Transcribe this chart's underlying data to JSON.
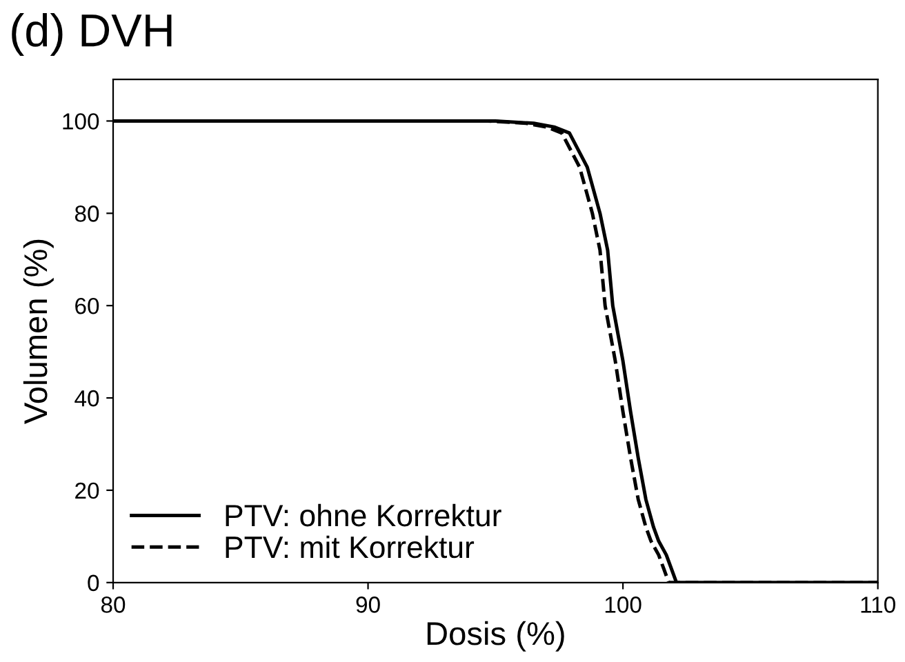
{
  "chart_data": {
    "type": "line",
    "title": "(d) DVH",
    "xlabel": "Dosis (%)",
    "ylabel": "Volumen (%)",
    "xlim": [
      80,
      110
    ],
    "xticks": [
      80,
      90,
      100,
      110
    ],
    "ylim": [
      0,
      109
    ],
    "yticks": [
      0,
      20,
      40,
      60,
      80,
      100
    ],
    "grid": false,
    "legend": "bottom left",
    "series": [
      {
        "name": "PTV: ohne Korrektur",
        "color": "#000000",
        "line_style": "solid",
        "x": [
          80,
          95,
          96.5,
          97.3,
          97.9,
          98.6,
          99.1,
          99.4,
          99.6,
          100.0,
          100.3,
          100.6,
          100.9,
          101.2,
          101.4,
          101.7,
          101.9,
          102.1,
          110
        ],
        "values": [
          100,
          100,
          99.5,
          98.7,
          97.4,
          90,
          80,
          72,
          60,
          48,
          37,
          27,
          18,
          12,
          9,
          6,
          3,
          0,
          0
        ]
      },
      {
        "name": "PTV: mit Korrektur",
        "color": "#000000",
        "line_style": "dashed",
        "x": [
          80,
          94.7,
          96.2,
          97.0,
          97.6,
          98.3,
          98.8,
          99.1,
          99.3,
          99.7,
          100.0,
          100.3,
          100.6,
          100.9,
          101.1,
          101.4,
          101.6,
          101.8,
          110
        ],
        "values": [
          100,
          100,
          99.5,
          98.7,
          97.4,
          90,
          80,
          72,
          60,
          48,
          37,
          27,
          18,
          12,
          9,
          6,
          3,
          0,
          0
        ]
      }
    ]
  }
}
